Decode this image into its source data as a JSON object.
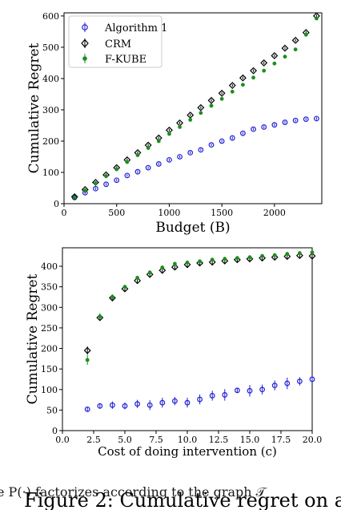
{
  "chart_data": [
    {
      "type": "scatter",
      "xlabel": "Budget (B)",
      "ylabel": "Cumulative Regret",
      "xlim": [
        0,
        2450
      ],
      "ylim": [
        0,
        610
      ],
      "xticks": [
        "0",
        "500",
        "1000",
        "1500",
        "2000"
      ],
      "yticks": [
        "0",
        "100",
        "200",
        "300",
        "400",
        "500",
        "600"
      ],
      "legend": {
        "position": "top-left",
        "entries": [
          "Algorithm 1",
          "CRM",
          "F-KUBE"
        ]
      },
      "series": [
        {
          "name": "Algorithm 1",
          "color": "#1f1fd6",
          "marker": "open-circle",
          "x": [
            100,
            200,
            300,
            400,
            500,
            600,
            700,
            800,
            900,
            1000,
            1100,
            1200,
            1300,
            1400,
            1500,
            1600,
            1700,
            1800,
            1900,
            2000,
            2100,
            2200,
            2300,
            2400
          ],
          "y": [
            20,
            35,
            48,
            62,
            75,
            90,
            102,
            115,
            127,
            140,
            150,
            163,
            172,
            188,
            200,
            210,
            225,
            238,
            245,
            252,
            260,
            266,
            270,
            272
          ]
        },
        {
          "name": "CRM",
          "color": "#000000",
          "marker": "open-diamond",
          "x": [
            100,
            200,
            300,
            400,
            500,
            600,
            700,
            800,
            900,
            1000,
            1100,
            1200,
            1300,
            1400,
            1500,
            1600,
            1700,
            1800,
            1900,
            2000,
            2100,
            2200,
            2300,
            2400
          ],
          "y": [
            22,
            45,
            68,
            92,
            115,
            140,
            163,
            187,
            210,
            235,
            258,
            283,
            307,
            330,
            353,
            378,
            402,
            425,
            450,
            473,
            497,
            522,
            547,
            600
          ]
        },
        {
          "name": "F-KUBE",
          "color": "#1b8f1b",
          "marker": "filled-circle",
          "x": [
            100,
            200,
            300,
            400,
            500,
            600,
            700,
            800,
            900,
            1000,
            1100,
            1200,
            1300,
            1400,
            1500,
            1600,
            1700,
            1800,
            1900,
            2000,
            2100,
            2200,
            2300,
            2400
          ],
          "y": [
            20,
            42,
            65,
            88,
            110,
            133,
            155,
            178,
            200,
            223,
            245,
            268,
            290,
            313,
            335,
            358,
            380,
            403,
            425,
            448,
            470,
            493,
            540,
            592
          ]
        }
      ]
    },
    {
      "type": "scatter",
      "xlabel": "Cost of doing intervention (c)",
      "ylabel": "Cumulative Regret",
      "xlim": [
        0.0,
        20.0
      ],
      "ylim": [
        0,
        445
      ],
      "xticks": [
        "0.0",
        "2.5",
        "5.0",
        "7.5",
        "10.0",
        "12.5",
        "15.0",
        "17.5",
        "20.0"
      ],
      "yticks": [
        "0",
        "50",
        "100",
        "150",
        "200",
        "250",
        "300",
        "350",
        "400"
      ],
      "series": [
        {
          "name": "Algorithm 1",
          "color": "#1f1fd6",
          "marker": "open-circle",
          "x": [
            2,
            3,
            4,
            5,
            6,
            7,
            8,
            9,
            10,
            11,
            12,
            13,
            14,
            15,
            16,
            17,
            18,
            19,
            20
          ],
          "y": [
            52,
            60,
            62,
            60,
            65,
            62,
            68,
            72,
            68,
            76,
            85,
            87,
            98,
            97,
            100,
            110,
            115,
            120,
            125
          ],
          "err": [
            6,
            7,
            9,
            8,
            10,
            12,
            12,
            10,
            12,
            12,
            12,
            14,
            5,
            14,
            12,
            12,
            14,
            10,
            8
          ]
        },
        {
          "name": "CRM",
          "color": "#000000",
          "marker": "open-diamond",
          "x": [
            2,
            3,
            4,
            5,
            6,
            7,
            8,
            9,
            10,
            11,
            12,
            13,
            14,
            15,
            16,
            17,
            18,
            19,
            20
          ],
          "y": [
            195,
            275,
            323,
            345,
            365,
            380,
            390,
            398,
            404,
            408,
            410,
            413,
            416,
            418,
            420,
            422,
            424,
            426,
            425
          ],
          "err": [
            10,
            8,
            6,
            5,
            5,
            5,
            5,
            5,
            5,
            5,
            5,
            5,
            5,
            5,
            5,
            5,
            5,
            5,
            5
          ]
        },
        {
          "name": "F-KUBE",
          "color": "#1b8f1b",
          "marker": "filled-circle",
          "x": [
            2,
            3,
            4,
            5,
            6,
            7,
            8,
            9,
            10,
            11,
            12,
            13,
            14,
            15,
            16,
            17,
            18,
            19,
            20
          ],
          "y": [
            172,
            278,
            325,
            350,
            372,
            385,
            397,
            406,
            409,
            412,
            416,
            418,
            420,
            422,
            425,
            427,
            430,
            432,
            434
          ],
          "err": [
            12,
            8,
            6,
            5,
            5,
            5,
            5,
            5,
            5,
            5,
            5,
            5,
            5,
            5,
            5,
            5,
            5,
            5,
            5
          ]
        }
      ]
    }
  ],
  "caption_bottom": "Figure 2: Cumulative regret on a",
  "caption_overlap": "e P(·) factorizes according to the graph 𝒯"
}
